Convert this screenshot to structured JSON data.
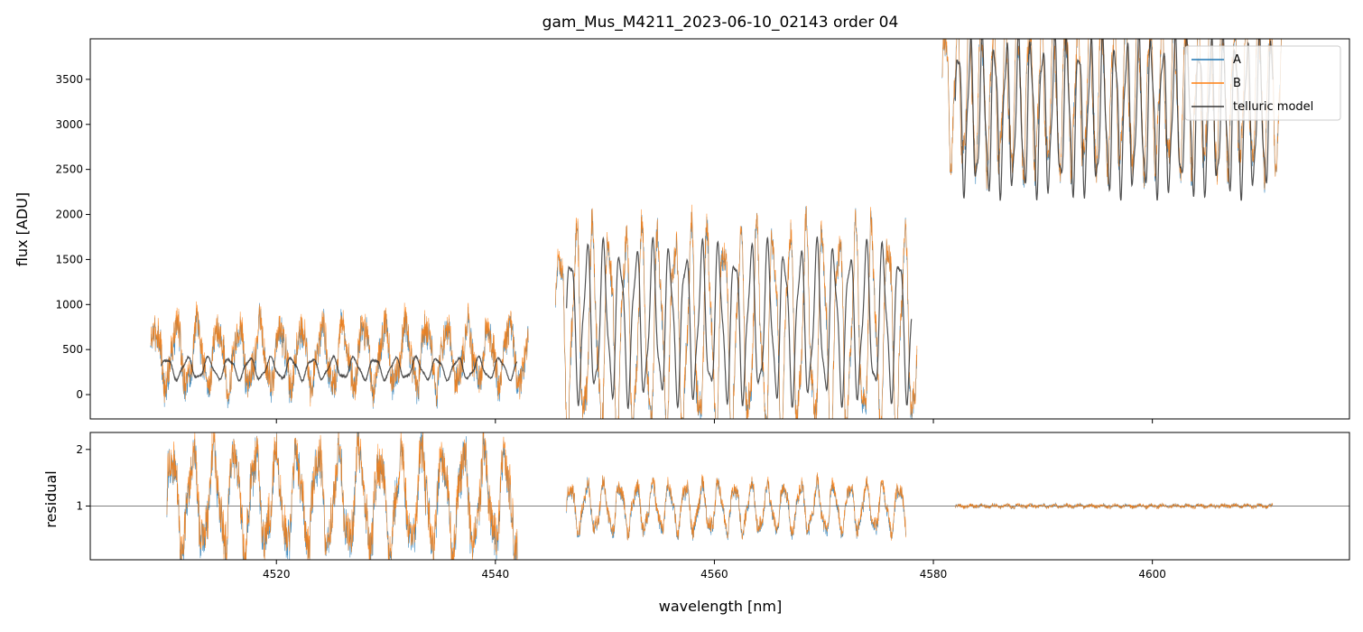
{
  "chart_data": [
    {
      "type": "line",
      "panel": "top",
      "title": "gam_Mus_M4211_2023-06-10_02143  order 04",
      "xlabel": "",
      "ylabel": "flux [ADU]",
      "xlim": [
        4503,
        4618
      ],
      "ylim": [
        -270,
        3950
      ],
      "yticks": [
        0,
        500,
        1000,
        1500,
        2000,
        2500,
        3000,
        3500
      ],
      "ytick_labels": [
        "0",
        "500",
        "1000",
        "1500",
        "2000",
        "2500",
        "3000",
        "3500"
      ],
      "xticks": [
        4520,
        4540,
        4560,
        4580,
        4600
      ],
      "legend": {
        "location": "top-right",
        "entries": [
          "A",
          "B",
          "telluric model"
        ]
      },
      "series": [
        {
          "name": "A",
          "color": "#1f77b4",
          "segments": [
            {
              "x_start": 4508.5,
              "x_end": 4543,
              "center": 420,
              "amp": 380,
              "period": 1.9,
              "noise": 170,
              "bias": 0
            },
            {
              "x_start": 4545.5,
              "x_end": 4578.5,
              "center": 700,
              "amp": 1200,
              "period": 1.5,
              "noise": 160,
              "bias": 0
            },
            {
              "x_start": 4580.8,
              "x_end": 4612,
              "center": 3300,
              "amp": 900,
              "period": 1.1,
              "noise": 140,
              "bias": 0
            }
          ]
        },
        {
          "name": "B",
          "color": "#ff7f0e",
          "segments": [
            {
              "x_start": 4508.5,
              "x_end": 4543,
              "center": 420,
              "amp": 380,
              "period": 1.9,
              "noise": 170,
              "bias": 25
            },
            {
              "x_start": 4545.5,
              "x_end": 4578.5,
              "center": 700,
              "amp": 1200,
              "period": 1.5,
              "noise": 160,
              "bias": 25
            },
            {
              "x_start": 4580.8,
              "x_end": 4612,
              "center": 3300,
              "amp": 900,
              "period": 1.1,
              "noise": 140,
              "bias": 25
            }
          ]
        },
        {
          "name": "telluric model",
          "color": "#333333",
          "segments": [
            {
              "x_start": 4509.5,
              "x_end": 4542,
              "center": 290,
              "amp": 130,
              "period": 1.9,
              "noise": 8,
              "bias": 0
            },
            {
              "x_start": 4546.5,
              "x_end": 4578,
              "center": 800,
              "amp": 900,
              "period": 1.5,
              "noise": 10,
              "bias": 0
            },
            {
              "x_start": 4582,
              "x_end": 4611,
              "center": 3100,
              "amp": 900,
              "period": 1.1,
              "noise": 12,
              "bias": 0
            }
          ]
        }
      ]
    },
    {
      "type": "line",
      "panel": "bottom",
      "title": "",
      "xlabel": "wavelength [nm]",
      "ylabel": "residual",
      "xlim": [
        4503,
        4618
      ],
      "ylim": [
        0.05,
        2.3
      ],
      "yticks": [
        1,
        2
      ],
      "ytick_labels": [
        "1",
        "2"
      ],
      "xticks": [
        4520,
        4540,
        4560,
        4580,
        4600
      ],
      "xtick_labels": [
        "4520",
        "4540",
        "4560",
        "4580",
        "4600"
      ],
      "reference_line": 1,
      "series": [
        {
          "name": "A",
          "color": "#1f77b4",
          "segments": [
            {
              "x_start": 4510,
              "x_end": 4542,
              "center": 1.1,
              "amp": 0.9,
              "period": 1.9,
              "noise": 0.35,
              "bias": 0
            },
            {
              "x_start": 4546.5,
              "x_end": 4577.5,
              "center": 0.95,
              "amp": 0.45,
              "period": 1.5,
              "noise": 0.12,
              "bias": 0
            },
            {
              "x_start": 4582,
              "x_end": 4611,
              "center": 1.0,
              "amp": 0.02,
              "period": 1.1,
              "noise": 0.03,
              "bias": 0
            }
          ]
        },
        {
          "name": "B",
          "color": "#ff7f0e",
          "segments": [
            {
              "x_start": 4510,
              "x_end": 4542,
              "center": 1.1,
              "amp": 0.9,
              "period": 1.9,
              "noise": 0.35,
              "bias": 0.04
            },
            {
              "x_start": 4546.5,
              "x_end": 4577.5,
              "center": 0.95,
              "amp": 0.45,
              "period": 1.5,
              "noise": 0.12,
              "bias": 0.03
            },
            {
              "x_start": 4582,
              "x_end": 4611,
              "center": 1.0,
              "amp": 0.02,
              "period": 1.1,
              "noise": 0.03,
              "bias": 0
            }
          ]
        }
      ]
    }
  ]
}
